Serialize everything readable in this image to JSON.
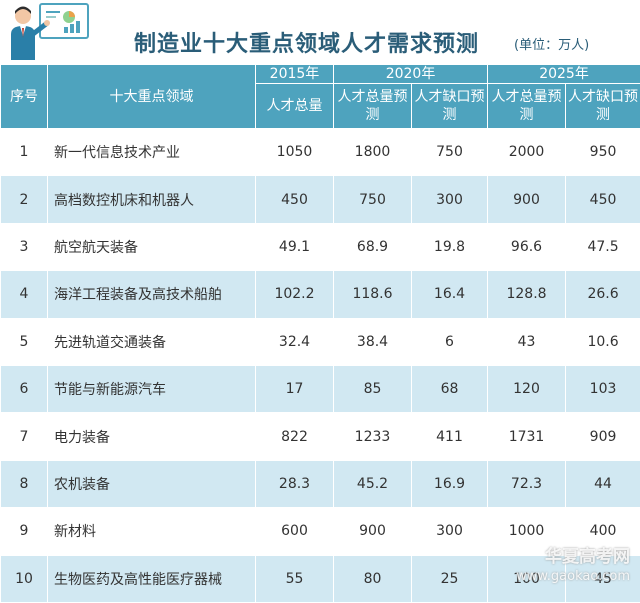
{
  "header": {
    "title": "制造业十大重点领域人才需求预测",
    "unit": "(单位：万人)",
    "logo_icon": "presenter-with-chart-icon"
  },
  "table": {
    "col_index": "序号",
    "col_name": "十大重点领域",
    "year_2015": "2015年",
    "year_2020": "2020年",
    "year_2025": "2025年",
    "sub_2015_total": "人才总量",
    "sub_2020_total": "人才总量预测",
    "sub_2020_gap": "人才缺口预测",
    "sub_2025_total": "人才总量预测",
    "sub_2025_gap": "人才缺口预测"
  },
  "chart_data": {
    "type": "table",
    "title": "制造业十大重点领域人才需求预测",
    "unit": "(单位：万人)",
    "columns": [
      "序号",
      "十大重点领域",
      "2015年 人才总量",
      "2020年 人才总量预测",
      "2020年 人才缺口预测",
      "2025年 人才总量预测",
      "2025年 人才缺口预测"
    ],
    "rows": [
      [
        "1",
        "新一代信息技术产业",
        "1050",
        "1800",
        "750",
        "2000",
        "950"
      ],
      [
        "2",
        "高档数控机床和机器人",
        "450",
        "750",
        "300",
        "900",
        "450"
      ],
      [
        "3",
        "航空航天装备",
        "49.1",
        "68.9",
        "19.8",
        "96.6",
        "47.5"
      ],
      [
        "4",
        "海洋工程装备及高技术船舶",
        "102.2",
        "118.6",
        "16.4",
        "128.8",
        "26.6"
      ],
      [
        "5",
        "先进轨道交通装备",
        "32.4",
        "38.4",
        "6",
        "43",
        "10.6"
      ],
      [
        "6",
        "节能与新能源汽车",
        "17",
        "85",
        "68",
        "120",
        "103"
      ],
      [
        "7",
        "电力装备",
        "822",
        "1233",
        "411",
        "1731",
        "909"
      ],
      [
        "8",
        "农机装备",
        "28.3",
        "45.2",
        "16.9",
        "72.3",
        "44"
      ],
      [
        "9",
        "新材料",
        "600",
        "900",
        "300",
        "1000",
        "400"
      ],
      [
        "10",
        "生物医药及高性能医疗器械",
        "55",
        "80",
        "25",
        "100",
        "45"
      ]
    ]
  },
  "watermark": {
    "line1": "华夏高考网",
    "line2": "www.gaokao.com"
  },
  "colors": {
    "header_bg": "#4ea3be",
    "row_stripe": "#d1e8f2",
    "title": "#2a5d78"
  }
}
